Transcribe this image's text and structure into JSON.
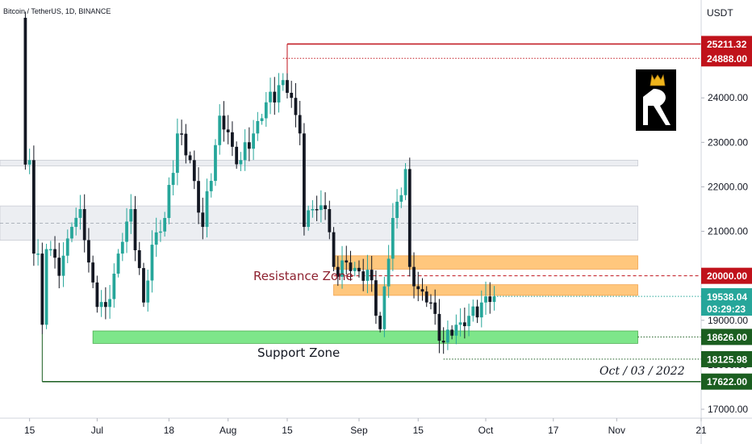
{
  "header": {
    "symbol": "Bitcoin / TetherUS, 1D, BINANCE",
    "currency": "USDT"
  },
  "colors": {
    "bull": "#26a69a",
    "bear": "#131722",
    "support_zone": "#7ee68a",
    "resistance_zone": "#ffc77d",
    "consolidation_zone": "#eceef2",
    "red_level": "#c0121b",
    "green_level": "#1b5e20",
    "current_badge": "#26a69a"
  },
  "annotations": {
    "resistance_label": "Resistance Zone",
    "support_label": "Support Zone",
    "date_label": "Oct / 03 / 2022"
  },
  "current_price": {
    "value": "19538.04",
    "countdown": "03:29:23"
  },
  "chart_data": {
    "type": "candlestick",
    "title": "Bitcoin / TetherUS, 1D, BINANCE",
    "y_unit": "USDT",
    "ylim": [
      16800,
      26200
    ],
    "y_ticks": [
      "17000.00",
      "18000.00",
      "19000.00",
      "20000.00",
      "21000.00",
      "22000.00",
      "23000.00",
      "24000.00"
    ],
    "x_ticks": [
      "15",
      "Jul",
      "18",
      "Aug",
      "15",
      "Sep",
      "15",
      "Oct",
      "17",
      "Nov",
      "21"
    ],
    "x_range": [
      "2022-06-08",
      "2022-11-21"
    ],
    "grid": false,
    "candle_anchors": [
      [
        "2022-06-13",
        25800
      ],
      [
        "2022-06-14",
        22500
      ],
      [
        "2022-06-15",
        22600
      ],
      [
        "2022-06-16",
        20500
      ],
      [
        "2022-06-17",
        20500
      ],
      [
        "2022-06-18",
        18900
      ],
      [
        "2022-06-19",
        20600
      ],
      [
        "2022-06-20",
        20600
      ],
      [
        "2022-06-22",
        20000
      ],
      [
        "2022-06-25",
        21100
      ],
      [
        "2022-06-27",
        21500
      ],
      [
        "2022-06-29",
        20300
      ],
      [
        "2022-07-01",
        19300
      ],
      [
        "2022-07-03",
        19300
      ],
      [
        "2022-07-06",
        20500
      ],
      [
        "2022-07-09",
        21500
      ],
      [
        "2022-07-12",
        19400
      ],
      [
        "2022-07-14",
        20700
      ],
      [
        "2022-07-17",
        21300
      ],
      [
        "2022-07-20",
        23200
      ],
      [
        "2022-07-23",
        22600
      ],
      [
        "2022-07-26",
        21100
      ],
      [
        "2022-07-30",
        23600
      ],
      [
        "2022-08-02",
        22900
      ],
      [
        "2022-08-04",
        22600
      ],
      [
        "2022-08-07",
        23200
      ],
      [
        "2022-08-10",
        23900
      ],
      [
        "2022-08-14",
        24400
      ],
      [
        "2022-08-16",
        24000
      ],
      [
        "2022-08-18",
        23200
      ],
      [
        "2022-08-19",
        21100
      ],
      [
        "2022-08-21",
        21500
      ],
      [
        "2022-08-24",
        21500
      ],
      [
        "2022-08-26",
        20200
      ],
      [
        "2022-08-29",
        20300
      ],
      [
        "2022-09-01",
        20100
      ],
      [
        "2022-09-04",
        19900
      ],
      [
        "2022-09-06",
        18800
      ],
      [
        "2022-09-09",
        21300
      ],
      [
        "2022-09-12",
        22400
      ],
      [
        "2022-09-13",
        20200
      ],
      [
        "2022-09-15",
        19700
      ],
      [
        "2022-09-18",
        19400
      ],
      [
        "2022-09-21",
        18500
      ],
      [
        "2022-09-24",
        18900
      ],
      [
        "2022-09-27",
        19100
      ],
      [
        "2022-09-30",
        19400
      ],
      [
        "2022-10-03",
        19538
      ]
    ],
    "zones": [
      {
        "name": "consolidation-top",
        "y": [
          22470,
          22600
        ],
        "x": [
          "2022-06-08",
          "2022-11-06"
        ]
      },
      {
        "name": "consolidation",
        "y": [
          20800,
          21570
        ],
        "x": [
          "2022-06-08",
          "2022-11-06"
        ]
      },
      {
        "name": "resistance",
        "y": [
          20150,
          20450
        ],
        "x": [
          "2022-08-26",
          "2022-11-06"
        ]
      },
      {
        "name": "resistance",
        "y": [
          19560,
          19800
        ],
        "x": [
          "2022-08-26",
          "2022-11-06"
        ]
      },
      {
        "name": "support",
        "y": [
          18480,
          18760
        ],
        "x": [
          "2022-06-30",
          "2022-11-06"
        ]
      }
    ],
    "price_levels": [
      {
        "value": 25211.32,
        "label": "25211.32",
        "style": "solid",
        "color": "#c0121b",
        "from": "2022-08-15"
      },
      {
        "value": 24888.0,
        "label": "24888.00",
        "style": "dotted",
        "color": "#c0121b",
        "from": "2022-08-14"
      },
      {
        "value": 20000.0,
        "label": "20000.00",
        "style": "dashed",
        "color": "#c0121b",
        "from": "2022-08-26"
      },
      {
        "value": 18626.0,
        "label": "18626.00",
        "style": "dotted",
        "color": "#1b5e20",
        "from": "2022-11-06"
      },
      {
        "value": 18125.98,
        "label": "18125.98",
        "style": "dotted",
        "color": "#1b5e20",
        "from": "2022-09-21"
      },
      {
        "value": 17622.0,
        "label": "17622.00",
        "style": "solid",
        "color": "#1b5e20",
        "from": "2022-06-18"
      }
    ]
  }
}
